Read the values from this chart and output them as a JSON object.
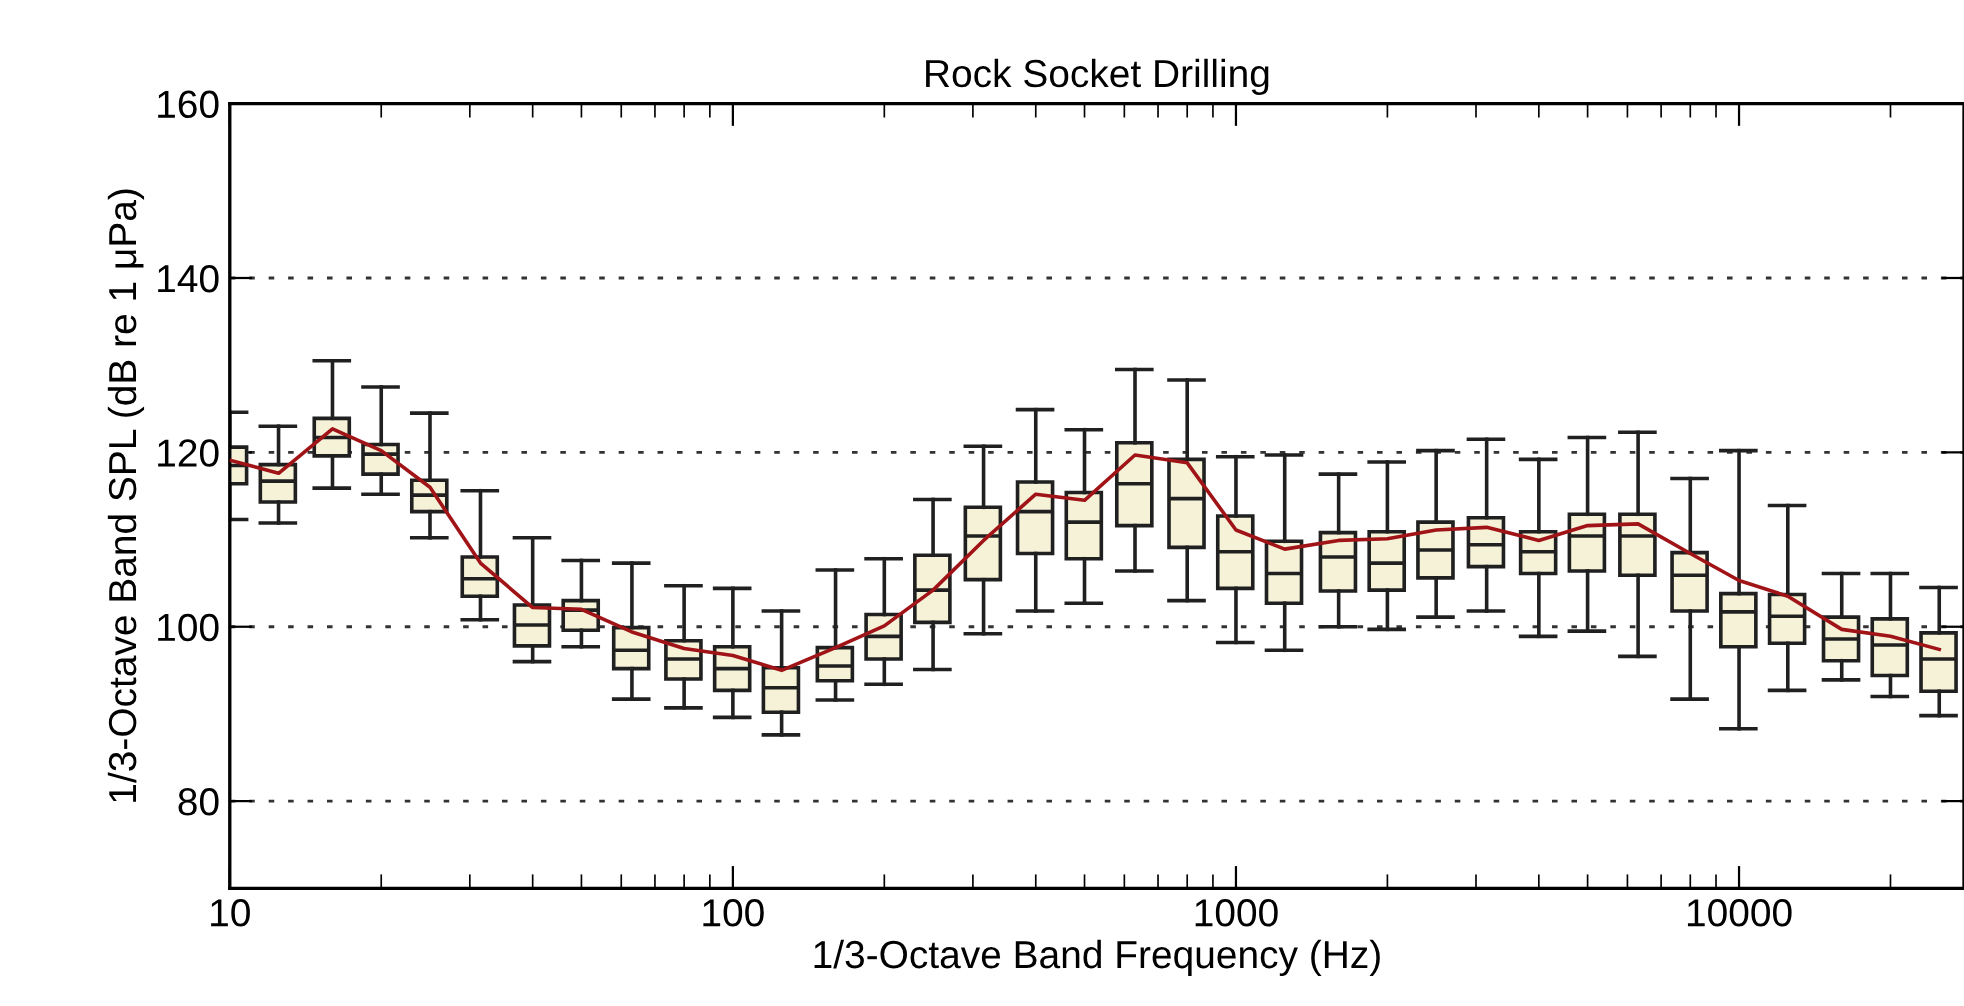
{
  "chart_data": {
    "type": "box",
    "title": "Rock Socket Drilling",
    "xlabel": "1/3-Octave Band Frequency (Hz)",
    "ylabel": "1/3-Octave Band SPL (dB re 1 μPa)",
    "log": "x",
    "grid": "y",
    "xlim": [
      10,
      28000
    ],
    "xticks": [
      10,
      100,
      1000,
      10000
    ],
    "ylim": [
      70,
      160
    ],
    "yticks": [
      80,
      100,
      120,
      140,
      160
    ],
    "x": [
      10,
      12.5,
      16,
      20,
      25,
      31.5,
      40,
      50,
      63,
      80,
      100,
      125,
      160,
      200,
      250,
      315,
      400,
      500,
      630,
      800,
      1000,
      1250,
      1600,
      2000,
      2500,
      3150,
      4000,
      5000,
      6300,
      8000,
      10000,
      12500,
      16000,
      20000,
      25000
    ],
    "series": [
      {
        "color": "#f5f2d8",
        "boxes": [
          {
            "low": 112.3,
            "q1": 116.4,
            "median": 118.5,
            "q3": 120.6,
            "high": 124.6
          },
          {
            "low": 111.9,
            "q1": 114.3,
            "median": 116.7,
            "q3": 118.6,
            "high": 123
          },
          {
            "low": 115.9,
            "q1": 119.6,
            "median": 121.7,
            "q3": 123.9,
            "high": 130.5
          },
          {
            "low": 115.2,
            "q1": 117.5,
            "median": 119.8,
            "q3": 120.9,
            "high": 127.5
          },
          {
            "low": 110.2,
            "q1": 113.2,
            "median": 115.1,
            "q3": 116.8,
            "high": 124.5
          },
          {
            "low": 100.8,
            "q1": 103.5,
            "median": 105.5,
            "q3": 108,
            "high": 115.6
          },
          {
            "low": 96,
            "q1": 97.8,
            "median": 100.2,
            "q3": 102.5,
            "high": 110.2
          },
          {
            "low": 97.7,
            "q1": 99.6,
            "median": 101.9,
            "q3": 103,
            "high": 107.6
          },
          {
            "low": 91.7,
            "q1": 95.2,
            "median": 97.3,
            "q3": 99.9,
            "high": 107.3
          },
          {
            "low": 90.7,
            "q1": 94,
            "median": 96.3,
            "q3": 98.4,
            "high": 104.7
          },
          {
            "low": 89.6,
            "q1": 92.7,
            "median": 95.2,
            "q3": 97.7,
            "high": 104.4
          },
          {
            "low": 87.6,
            "q1": 90.2,
            "median": 93,
            "q3": 95.3,
            "high": 101.8
          },
          {
            "low": 91.6,
            "q1": 93.8,
            "median": 95.5,
            "q3": 97.6,
            "high": 106.5
          },
          {
            "low": 93.4,
            "q1": 96.3,
            "median": 98.9,
            "q3": 101.4,
            "high": 107.8
          },
          {
            "low": 95.1,
            "q1": 100.5,
            "median": 104.2,
            "q3": 108.2,
            "high": 114.6
          },
          {
            "low": 99.2,
            "q1": 105.4,
            "median": 110.4,
            "q3": 113.7,
            "high": 120.7
          },
          {
            "low": 101.8,
            "q1": 108.4,
            "median": 113.2,
            "q3": 116.6,
            "high": 124.9
          },
          {
            "low": 102.7,
            "q1": 107.8,
            "median": 112,
            "q3": 115.4,
            "high": 122.6
          },
          {
            "low": 106.4,
            "q1": 111.6,
            "median": 116.4,
            "q3": 121.1,
            "high": 129.5
          },
          {
            "low": 103,
            "q1": 109.1,
            "median": 114.7,
            "q3": 119.2,
            "high": 128.3
          },
          {
            "low": 98.2,
            "q1": 104.4,
            "median": 108.6,
            "q3": 112.7,
            "high": 119.5
          },
          {
            "low": 97.3,
            "q1": 102.7,
            "median": 106.1,
            "q3": 109.8,
            "high": 119.7
          },
          {
            "low": 100,
            "q1": 104.1,
            "median": 108,
            "q3": 110.8,
            "high": 117.5
          },
          {
            "low": 99.7,
            "q1": 104.2,
            "median": 107.3,
            "q3": 110.9,
            "high": 118.9
          },
          {
            "low": 101.1,
            "q1": 105.6,
            "median": 108.8,
            "q3": 112,
            "high": 120.2
          },
          {
            "low": 101.8,
            "q1": 106.9,
            "median": 109.4,
            "q3": 112.5,
            "high": 121.5
          },
          {
            "low": 98.9,
            "q1": 106.1,
            "median": 108.6,
            "q3": 110.9,
            "high": 119.2
          },
          {
            "low": 99.5,
            "q1": 106.4,
            "median": 110.4,
            "q3": 112.9,
            "high": 121.7
          },
          {
            "low": 96.6,
            "q1": 105.9,
            "median": 110.4,
            "q3": 112.9,
            "high": 122.3
          },
          {
            "low": 91.7,
            "q1": 101.8,
            "median": 105.9,
            "q3": 108.5,
            "high": 117
          },
          {
            "low": 88.3,
            "q1": 97.7,
            "median": 101.7,
            "q3": 103.8,
            "high": 120.2
          },
          {
            "low": 92.7,
            "q1": 98.1,
            "median": 101.2,
            "q3": 103.7,
            "high": 113.9
          },
          {
            "low": 93.9,
            "q1": 96.1,
            "median": 98.6,
            "q3": 101.1,
            "high": 106.1
          },
          {
            "low": 92,
            "q1": 94.4,
            "median": 97.9,
            "q3": 100.9,
            "high": 106.1
          },
          {
            "low": 89.8,
            "q1": 92.6,
            "median": 96.3,
            "q3": 99.3,
            "high": 104.5
          }
        ]
      },
      {
        "type": "line",
        "color": "#a01418",
        "values": [
          119.1,
          117.6,
          122.7,
          120.2,
          116,
          107.3,
          102.2,
          102,
          99.4,
          97.5,
          96.7,
          95,
          97.6,
          100.1,
          104.2,
          109.9,
          115.2,
          114.5,
          119.7,
          118.8,
          111.1,
          108.9,
          109.9,
          110.1,
          111.1,
          111.4,
          109.9,
          111.6,
          111.8,
          108.4,
          105.3,
          103.5,
          99.7,
          98.9,
          97.4
        ]
      }
    ]
  }
}
